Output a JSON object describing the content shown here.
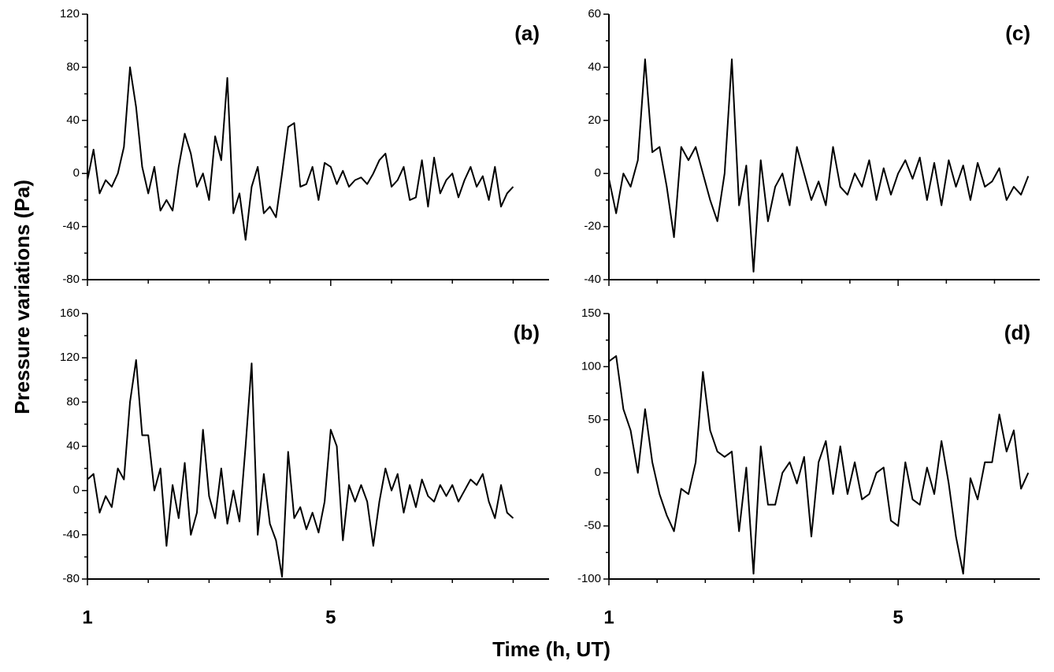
{
  "axis_labels": {
    "x": "Time (h, UT)",
    "y": "Pressure variations (Pa)"
  },
  "chart_data": [
    {
      "type": "line",
      "label": "(a)",
      "xtick_labels": false,
      "x": [
        1.0,
        1.1,
        1.2,
        1.3,
        1.4,
        1.5,
        1.6,
        1.7,
        1.8,
        1.9,
        2.0,
        2.1,
        2.2,
        2.3,
        2.4,
        2.5,
        2.6,
        2.7,
        2.8,
        2.9,
        3.0,
        3.1,
        3.2,
        3.3,
        3.4,
        3.5,
        3.6,
        3.7,
        3.8,
        3.9,
        4.0,
        4.1,
        4.2,
        4.3,
        4.4,
        4.5,
        4.6,
        4.7,
        4.8,
        4.9,
        5.0,
        5.1,
        5.2,
        5.3,
        5.4,
        5.5,
        5.6,
        5.7,
        5.8,
        5.9,
        6.0,
        6.1,
        6.2,
        6.3,
        6.4,
        6.5,
        6.6,
        6.7,
        6.8,
        6.9,
        7.0,
        7.1,
        7.2,
        7.3,
        7.4,
        7.5,
        7.6,
        7.7,
        7.8,
        7.9,
        8.0
      ],
      "series": [
        {
          "color": "#000000",
          "values": [
            -5,
            18,
            -15,
            -5,
            -10,
            0,
            20,
            80,
            50,
            5,
            -15,
            5,
            -28,
            -20,
            -28,
            5,
            30,
            15,
            -10,
            0,
            -20,
            28,
            10,
            72,
            -30,
            -15,
            -50,
            -10,
            5,
            -30,
            -25,
            -33,
            0,
            35,
            38,
            -10,
            -8,
            5,
            -20,
            8,
            5,
            -8,
            2,
            -10,
            -5,
            -3,
            -8,
            0,
            10,
            15,
            -10,
            -5,
            5,
            -20,
            -18,
            10,
            -25,
            12,
            -15,
            -5,
            0,
            -18,
            -5,
            5,
            -10,
            -2,
            -20,
            5,
            -25,
            -15,
            -10
          ]
        }
      ],
      "xlim": [
        1,
        8.59
      ],
      "xticks": [
        1,
        5
      ],
      "minor_xticks": [
        2,
        3,
        4,
        6,
        7,
        8
      ],
      "ylim": [
        -80,
        120
      ],
      "yticks": [
        -80,
        -40,
        0,
        40,
        80,
        120
      ],
      "minor_yticks": [
        -60,
        -20,
        20,
        60,
        100
      ]
    },
    {
      "type": "line",
      "label": "(b)",
      "xtick_labels": true,
      "x": [
        1.0,
        1.1,
        1.2,
        1.3,
        1.4,
        1.5,
        1.6,
        1.7,
        1.8,
        1.9,
        2.0,
        2.1,
        2.2,
        2.3,
        2.4,
        2.5,
        2.6,
        2.7,
        2.8,
        2.9,
        3.0,
        3.1,
        3.2,
        3.3,
        3.4,
        3.5,
        3.6,
        3.7,
        3.8,
        3.9,
        4.0,
        4.1,
        4.2,
        4.3,
        4.4,
        4.5,
        4.6,
        4.7,
        4.8,
        4.9,
        5.0,
        5.1,
        5.2,
        5.3,
        5.4,
        5.5,
        5.6,
        5.7,
        5.8,
        5.9,
        6.0,
        6.1,
        6.2,
        6.3,
        6.4,
        6.5,
        6.6,
        6.7,
        6.8,
        6.9,
        7.0,
        7.1,
        7.2,
        7.3,
        7.4,
        7.5,
        7.6,
        7.7,
        7.8,
        7.9,
        8.0
      ],
      "series": [
        {
          "color": "#000000",
          "values": [
            10,
            15,
            -20,
            -5,
            -15,
            20,
            10,
            80,
            118,
            50,
            50,
            0,
            20,
            -50,
            5,
            -25,
            25,
            -40,
            -20,
            55,
            -5,
            -25,
            20,
            -30,
            0,
            -28,
            40,
            115,
            -40,
            15,
            -30,
            -45,
            -78,
            35,
            -25,
            -15,
            -35,
            -20,
            -38,
            -10,
            55,
            40,
            -45,
            5,
            -10,
            5,
            -10,
            -50,
            -10,
            20,
            0,
            15,
            -20,
            5,
            -15,
            10,
            -5,
            -10,
            5,
            -5,
            5,
            -10,
            0,
            10,
            5,
            15,
            -10,
            -25,
            5,
            -20,
            -25
          ]
        }
      ],
      "xlim": [
        1,
        8.59
      ],
      "xticks": [
        1,
        5
      ],
      "minor_xticks": [
        2,
        3,
        4,
        6,
        7,
        8
      ],
      "ylim": [
        -80,
        160
      ],
      "yticks": [
        -80,
        -40,
        0,
        40,
        80,
        120,
        160
      ],
      "minor_yticks": [
        -60,
        -20,
        20,
        60,
        100,
        140
      ]
    },
    {
      "type": "line",
      "label": "(c)",
      "xtick_labels": false,
      "x": [
        1.0,
        1.1,
        1.2,
        1.3,
        1.4,
        1.5,
        1.6,
        1.7,
        1.8,
        1.9,
        2.0,
        2.1,
        2.2,
        2.3,
        2.4,
        2.5,
        2.6,
        2.7,
        2.8,
        2.9,
        3.0,
        3.1,
        3.2,
        3.3,
        3.4,
        3.5,
        3.6,
        3.7,
        3.8,
        3.9,
        4.0,
        4.1,
        4.2,
        4.3,
        4.4,
        4.5,
        4.6,
        4.7,
        4.8,
        4.9,
        5.0,
        5.1,
        5.2,
        5.3,
        5.4,
        5.5,
        5.6,
        5.7,
        5.8,
        5.9,
        6.0,
        6.1,
        6.2,
        6.3,
        6.4,
        6.5,
        6.6,
        6.7,
        6.8
      ],
      "series": [
        {
          "color": "#000000",
          "values": [
            -2,
            -15,
            0,
            -5,
            5,
            43,
            8,
            10,
            -5,
            -24,
            10,
            5,
            10,
            0,
            -10,
            -18,
            0,
            43,
            -12,
            3,
            -37,
            5,
            -18,
            -5,
            0,
            -12,
            10,
            0,
            -10,
            -3,
            -12,
            10,
            -5,
            -8,
            0,
            -5,
            5,
            -10,
            2,
            -8,
            0,
            5,
            -2,
            6,
            -10,
            4,
            -12,
            5,
            -5,
            3,
            -10,
            4,
            -5,
            -3,
            2,
            -10,
            -5,
            -8,
            -1
          ]
        }
      ],
      "xlim": [
        1,
        6.96
      ],
      "xticks": [
        1,
        5
      ],
      "minor_xticks": [
        1.667,
        2.333,
        3,
        3.667,
        4.333,
        5.667,
        6.333
      ],
      "ylim": [
        -40,
        60
      ],
      "yticks": [
        -40,
        -20,
        0,
        20,
        40,
        60
      ],
      "minor_yticks": [
        -30,
        -10,
        10,
        30,
        50
      ]
    },
    {
      "type": "line",
      "label": "(d)",
      "xtick_labels": true,
      "x": [
        1.0,
        1.1,
        1.2,
        1.3,
        1.4,
        1.5,
        1.6,
        1.7,
        1.8,
        1.9,
        2.0,
        2.1,
        2.2,
        2.3,
        2.4,
        2.5,
        2.6,
        2.7,
        2.8,
        2.9,
        3.0,
        3.1,
        3.2,
        3.3,
        3.4,
        3.5,
        3.6,
        3.7,
        3.8,
        3.9,
        4.0,
        4.1,
        4.2,
        4.3,
        4.4,
        4.5,
        4.6,
        4.7,
        4.8,
        4.9,
        5.0,
        5.1,
        5.2,
        5.3,
        5.4,
        5.5,
        5.6,
        5.7,
        5.8,
        5.9,
        6.0,
        6.1,
        6.2,
        6.3,
        6.4,
        6.5,
        6.6,
        6.7,
        6.8
      ],
      "series": [
        {
          "color": "#000000",
          "values": [
            105,
            110,
            60,
            40,
            0,
            60,
            10,
            -20,
            -40,
            -55,
            -15,
            -20,
            10,
            95,
            40,
            20,
            15,
            20,
            -55,
            5,
            -95,
            25,
            -30,
            -30,
            0,
            10,
            -10,
            15,
            -60,
            10,
            30,
            -20,
            25,
            -20,
            10,
            -25,
            -20,
            0,
            5,
            -45,
            -50,
            10,
            -25,
            -30,
            5,
            -20,
            30,
            -10,
            -60,
            -95,
            -5,
            -25,
            10,
            10,
            55,
            20,
            40,
            -15,
            0
          ]
        }
      ],
      "xlim": [
        1,
        6.96
      ],
      "xticks": [
        1,
        5
      ],
      "minor_xticks": [
        1.667,
        2.333,
        3,
        3.667,
        4.333,
        5.667,
        6.333
      ],
      "ylim": [
        -100,
        150
      ],
      "yticks": [
        -100,
        -50,
        0,
        50,
        100,
        150
      ],
      "minor_yticks": [
        -75,
        -25,
        25,
        75,
        125
      ]
    }
  ]
}
